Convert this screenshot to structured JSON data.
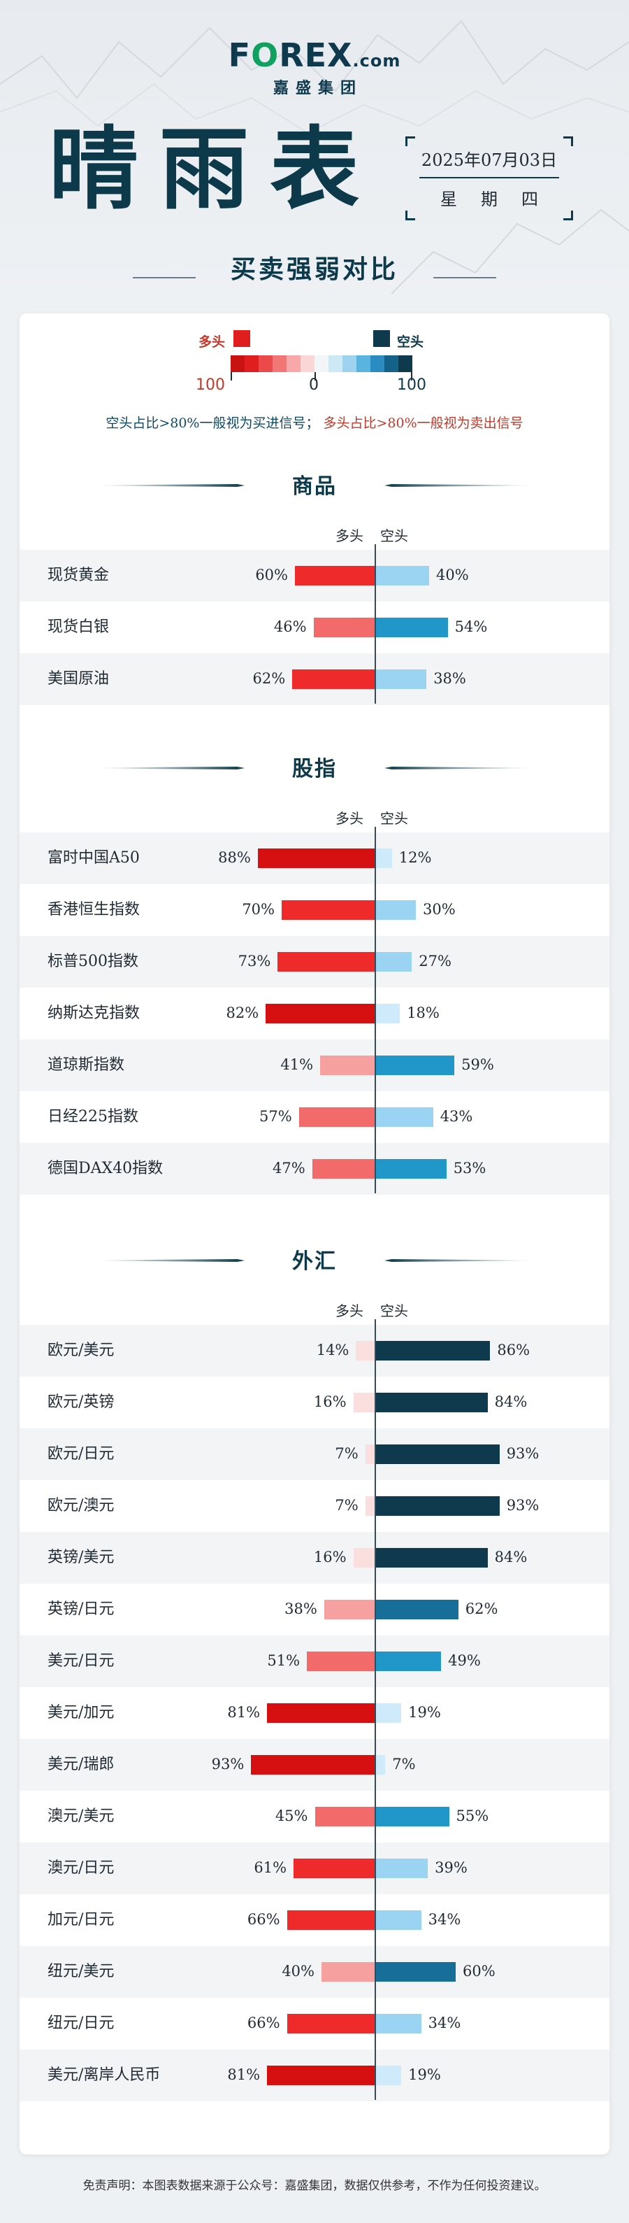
{
  "header": {
    "brand_left": "F",
    "brand_o": "O",
    "brand_right": "REX",
    "brand_suffix": ".com",
    "brand_sub": "嘉盛集团",
    "title": "晴雨表",
    "date": "2025年07月03日",
    "weekday": "星期四",
    "subtitle": "买卖强弱对比"
  },
  "legend": {
    "long_label": "多头",
    "short_label": "空头",
    "scale_left": "100",
    "scale_mid": "0",
    "scale_right": "100",
    "long_color": "#e01e1e",
    "short_color": "#0f3a4e",
    "note_short": "空头占比>80%一般视为买进信号；",
    "note_long": "多头占比>80%一般视为卖出信号"
  },
  "columns": {
    "long": "多头",
    "short": "空头"
  },
  "sections": [
    {
      "title": "商品",
      "rows": [
        {
          "name": "现货黄金",
          "long": 60,
          "short": 40
        },
        {
          "name": "现货白银",
          "long": 46,
          "short": 54
        },
        {
          "name": "美国原油",
          "long": 62,
          "short": 38
        }
      ]
    },
    {
      "title": "股指",
      "rows": [
        {
          "name": "富时中国A50",
          "long": 88,
          "short": 12
        },
        {
          "name": "香港恒生指数",
          "long": 70,
          "short": 30
        },
        {
          "name": "标普500指数",
          "long": 73,
          "short": 27
        },
        {
          "name": "纳斯达克指数",
          "long": 82,
          "short": 18
        },
        {
          "name": "道琼斯指数",
          "long": 41,
          "short": 59
        },
        {
          "name": "日经225指数",
          "long": 57,
          "short": 43
        },
        {
          "name": "德国DAX40指数",
          "long": 47,
          "short": 53
        }
      ]
    },
    {
      "title": "外汇",
      "rows": [
        {
          "name": "欧元/美元",
          "long": 14,
          "short": 86
        },
        {
          "name": "欧元/英镑",
          "long": 16,
          "short": 84
        },
        {
          "name": "欧元/日元",
          "long": 7,
          "short": 93
        },
        {
          "name": "欧元/澳元",
          "long": 7,
          "short": 93
        },
        {
          "name": "英镑/美元",
          "long": 16,
          "short": 84
        },
        {
          "name": "英镑/日元",
          "long": 38,
          "short": 62
        },
        {
          "name": "美元/日元",
          "long": 51,
          "short": 49
        },
        {
          "name": "美元/加元",
          "long": 81,
          "short": 19
        },
        {
          "name": "美元/瑞郎",
          "long": 93,
          "short": 7
        },
        {
          "name": "澳元/美元",
          "long": 45,
          "short": 55
        },
        {
          "name": "澳元/日元",
          "long": 61,
          "short": 39
        },
        {
          "name": "加元/日元",
          "long": 66,
          "short": 34
        },
        {
          "name": "纽元/美元",
          "long": 40,
          "short": 60
        },
        {
          "name": "纽元/日元",
          "long": 66,
          "short": 34
        },
        {
          "name": "美元/离岸人民币",
          "long": 81,
          "short": 19
        }
      ]
    }
  ],
  "footer": "免责声明：本图表数据来源于公众号：嘉盛集团，数据仅供参考，不作为任何投资建议。"
}
